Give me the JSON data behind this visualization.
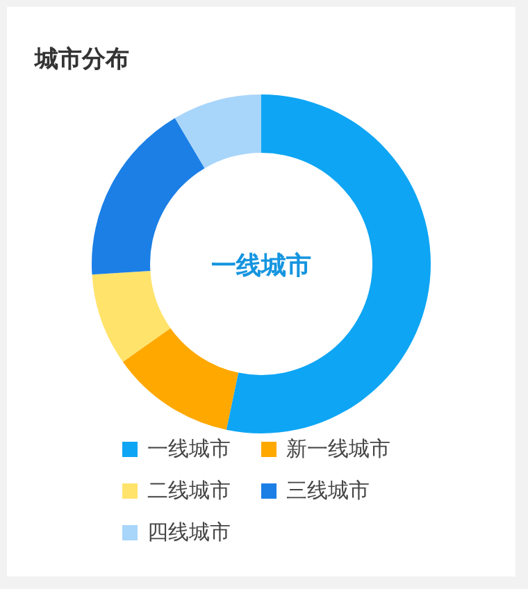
{
  "chart_data": {
    "type": "donut",
    "title": "城市分布",
    "categories": [
      "一线城市",
      "新一线城市",
      "二线城市",
      "三线城市",
      "四线城市"
    ],
    "values": [
      53.3,
      11.9,
      8.8,
      17.5,
      8.5
    ],
    "colors": [
      "#0ea5f4",
      "#ffa800",
      "#ffe36b",
      "#1b7fe6",
      "#a8d5fa"
    ],
    "annotations": [
      "一线城市"
    ],
    "legend": "bottom"
  }
}
